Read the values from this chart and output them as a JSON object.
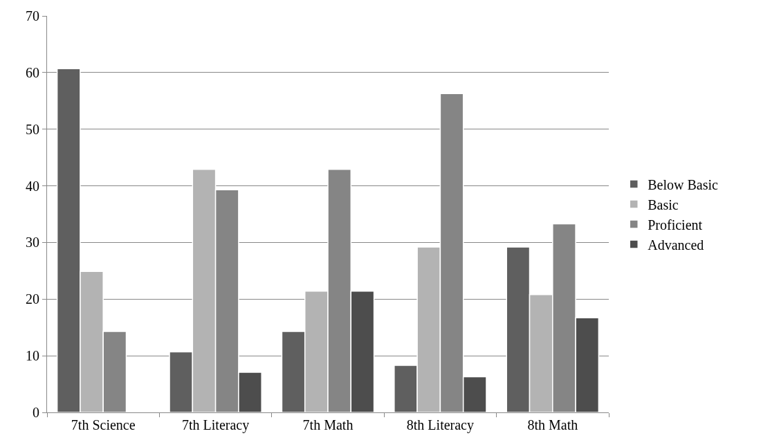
{
  "chart_data": {
    "type": "bar",
    "categories": [
      "7th Science",
      "7th Literacy",
      "7th Math",
      "8th Literacy",
      "8th Math"
    ],
    "series": [
      {
        "name": "Below Basic",
        "color": "#5f5f5f",
        "values": [
          60.7,
          10.7,
          14.3,
          8.3,
          29.2
        ]
      },
      {
        "name": "Basic",
        "color": "#b3b3b3",
        "values": [
          24.9,
          42.9,
          21.4,
          29.2,
          20.8
        ]
      },
      {
        "name": "Proficient",
        "color": "#858585",
        "values": [
          14.3,
          39.3,
          42.9,
          56.3,
          33.3
        ]
      },
      {
        "name": "Advanced",
        "color": "#4d4d4d",
        "values": [
          null,
          7.1,
          21.4,
          6.3,
          16.7
        ]
      }
    ],
    "ylim": [
      0,
      70
    ],
    "yticks": [
      0,
      10,
      20,
      30,
      40,
      50,
      60,
      70
    ],
    "grid": "y",
    "legend": "right"
  }
}
